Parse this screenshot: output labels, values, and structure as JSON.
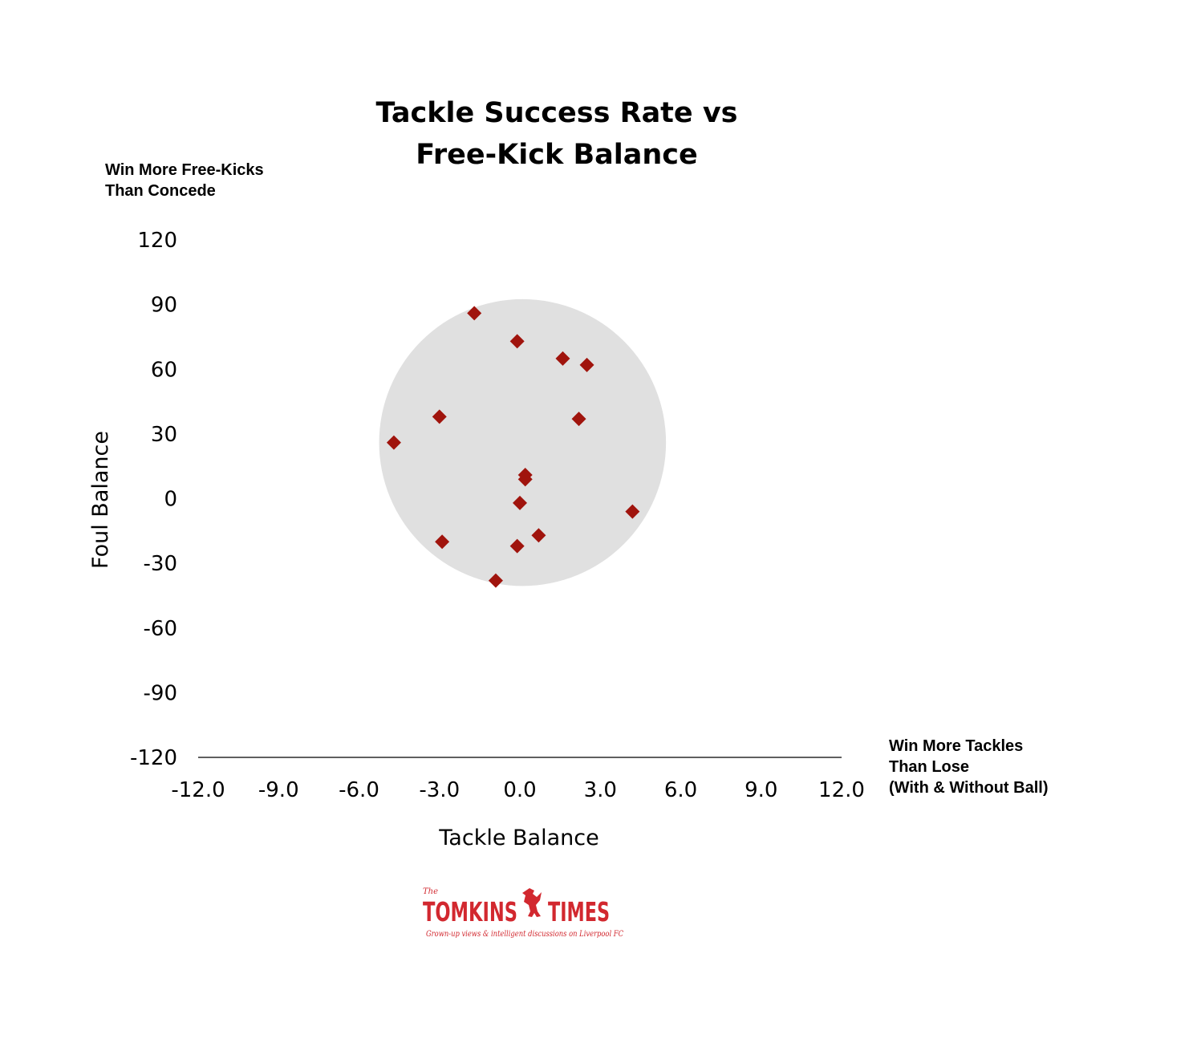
{
  "chart_data": {
    "type": "scatter",
    "title_lines": [
      "Tackle Success Rate vs",
      "Free-Kick Balance"
    ],
    "xlabel": "Tackle Balance",
    "ylabel": "Foul Balance",
    "xlim": [
      -12,
      12
    ],
    "ylim": [
      -120,
      120
    ],
    "x_ticks": [
      -12,
      -9,
      -6,
      -3,
      0,
      3,
      6,
      9,
      12
    ],
    "x_tick_labels": [
      "-12.0",
      "-9.0",
      "-6.0",
      "-3.0",
      "0.0",
      "3.0",
      "6.0",
      "9.0",
      "12.0"
    ],
    "y_ticks": [
      120,
      90,
      60,
      30,
      0,
      -30,
      -60,
      -90,
      -120
    ],
    "y_tick_labels": [
      "120",
      "90",
      "60",
      "30",
      "0",
      "-30",
      "-60",
      "-90",
      "-120"
    ],
    "corner_note_y": [
      "Win More Free-Kicks",
      "Than Concede"
    ],
    "corner_note_x": [
      "Win More Tackles",
      "Than Lose",
      "(With & Without Ball)"
    ],
    "grid": false,
    "highlight_circle": {
      "cx": 0.1,
      "cy": 26,
      "rx": 5.35,
      "ry": 66.5,
      "color": "#e0e0e0"
    },
    "marker_shape": "diamond",
    "marker_color": "#a0140d",
    "series": [
      {
        "x": [
          -1.7,
          -0.1,
          1.6,
          2.5,
          -3.0,
          2.2,
          -4.7,
          0.2,
          0.2,
          0.0,
          4.2,
          -2.9,
          0.7,
          -0.1,
          -0.9
        ],
        "y": [
          86,
          73,
          65,
          62,
          38,
          37,
          26,
          11,
          9,
          -2,
          -6,
          -20,
          -17,
          -22,
          -38
        ]
      }
    ]
  },
  "logo": {
    "small_text": "The",
    "main_left": "TOMKINS",
    "main_right": "TIMES",
    "tagline": "Grown-up views & intelligent discussions on Liverpool FC",
    "color": "#d2282f"
  }
}
